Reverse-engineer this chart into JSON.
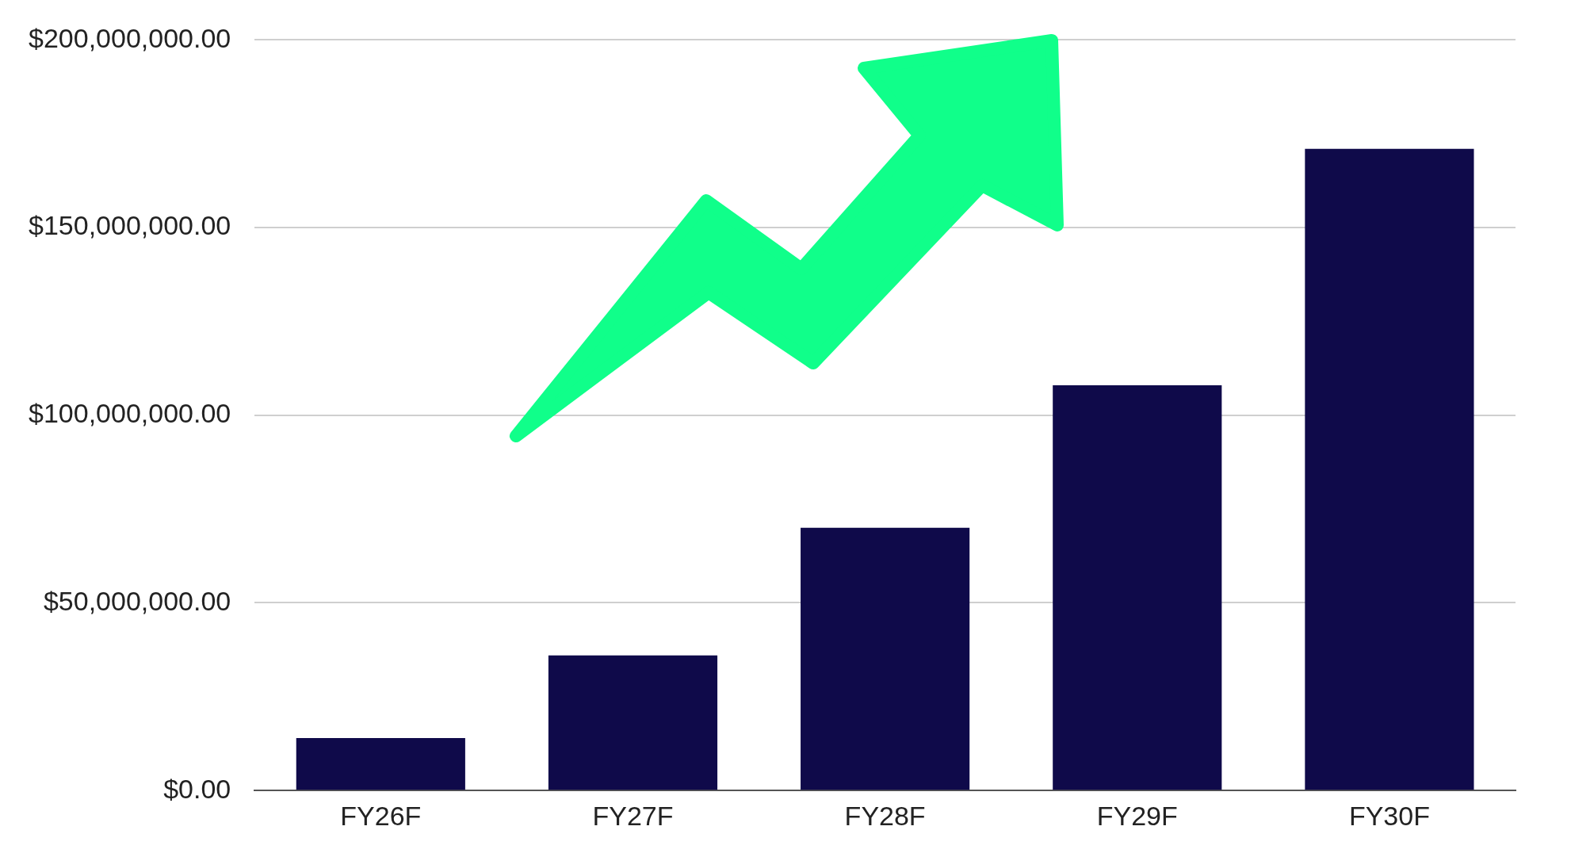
{
  "chart_data": {
    "type": "bar",
    "categories": [
      "FY26F",
      "FY27F",
      "FY28F",
      "FY29F",
      "FY30F"
    ],
    "values": [
      14000000,
      36000000,
      70000000,
      108000000,
      171000000
    ],
    "color": "#0f0a4a",
    "ylim": [
      0,
      200000000
    ],
    "yticks": [
      {
        "value": 0,
        "label": "$0.00"
      },
      {
        "value": 50000000,
        "label": "$50,000,000.00"
      },
      {
        "value": 100000000,
        "label": "$100,000,000.00"
      },
      {
        "value": 150000000,
        "label": "$150,000,000.00"
      },
      {
        "value": 200000000,
        "label": "$200,000,000.00"
      }
    ],
    "grid": "y"
  }
}
